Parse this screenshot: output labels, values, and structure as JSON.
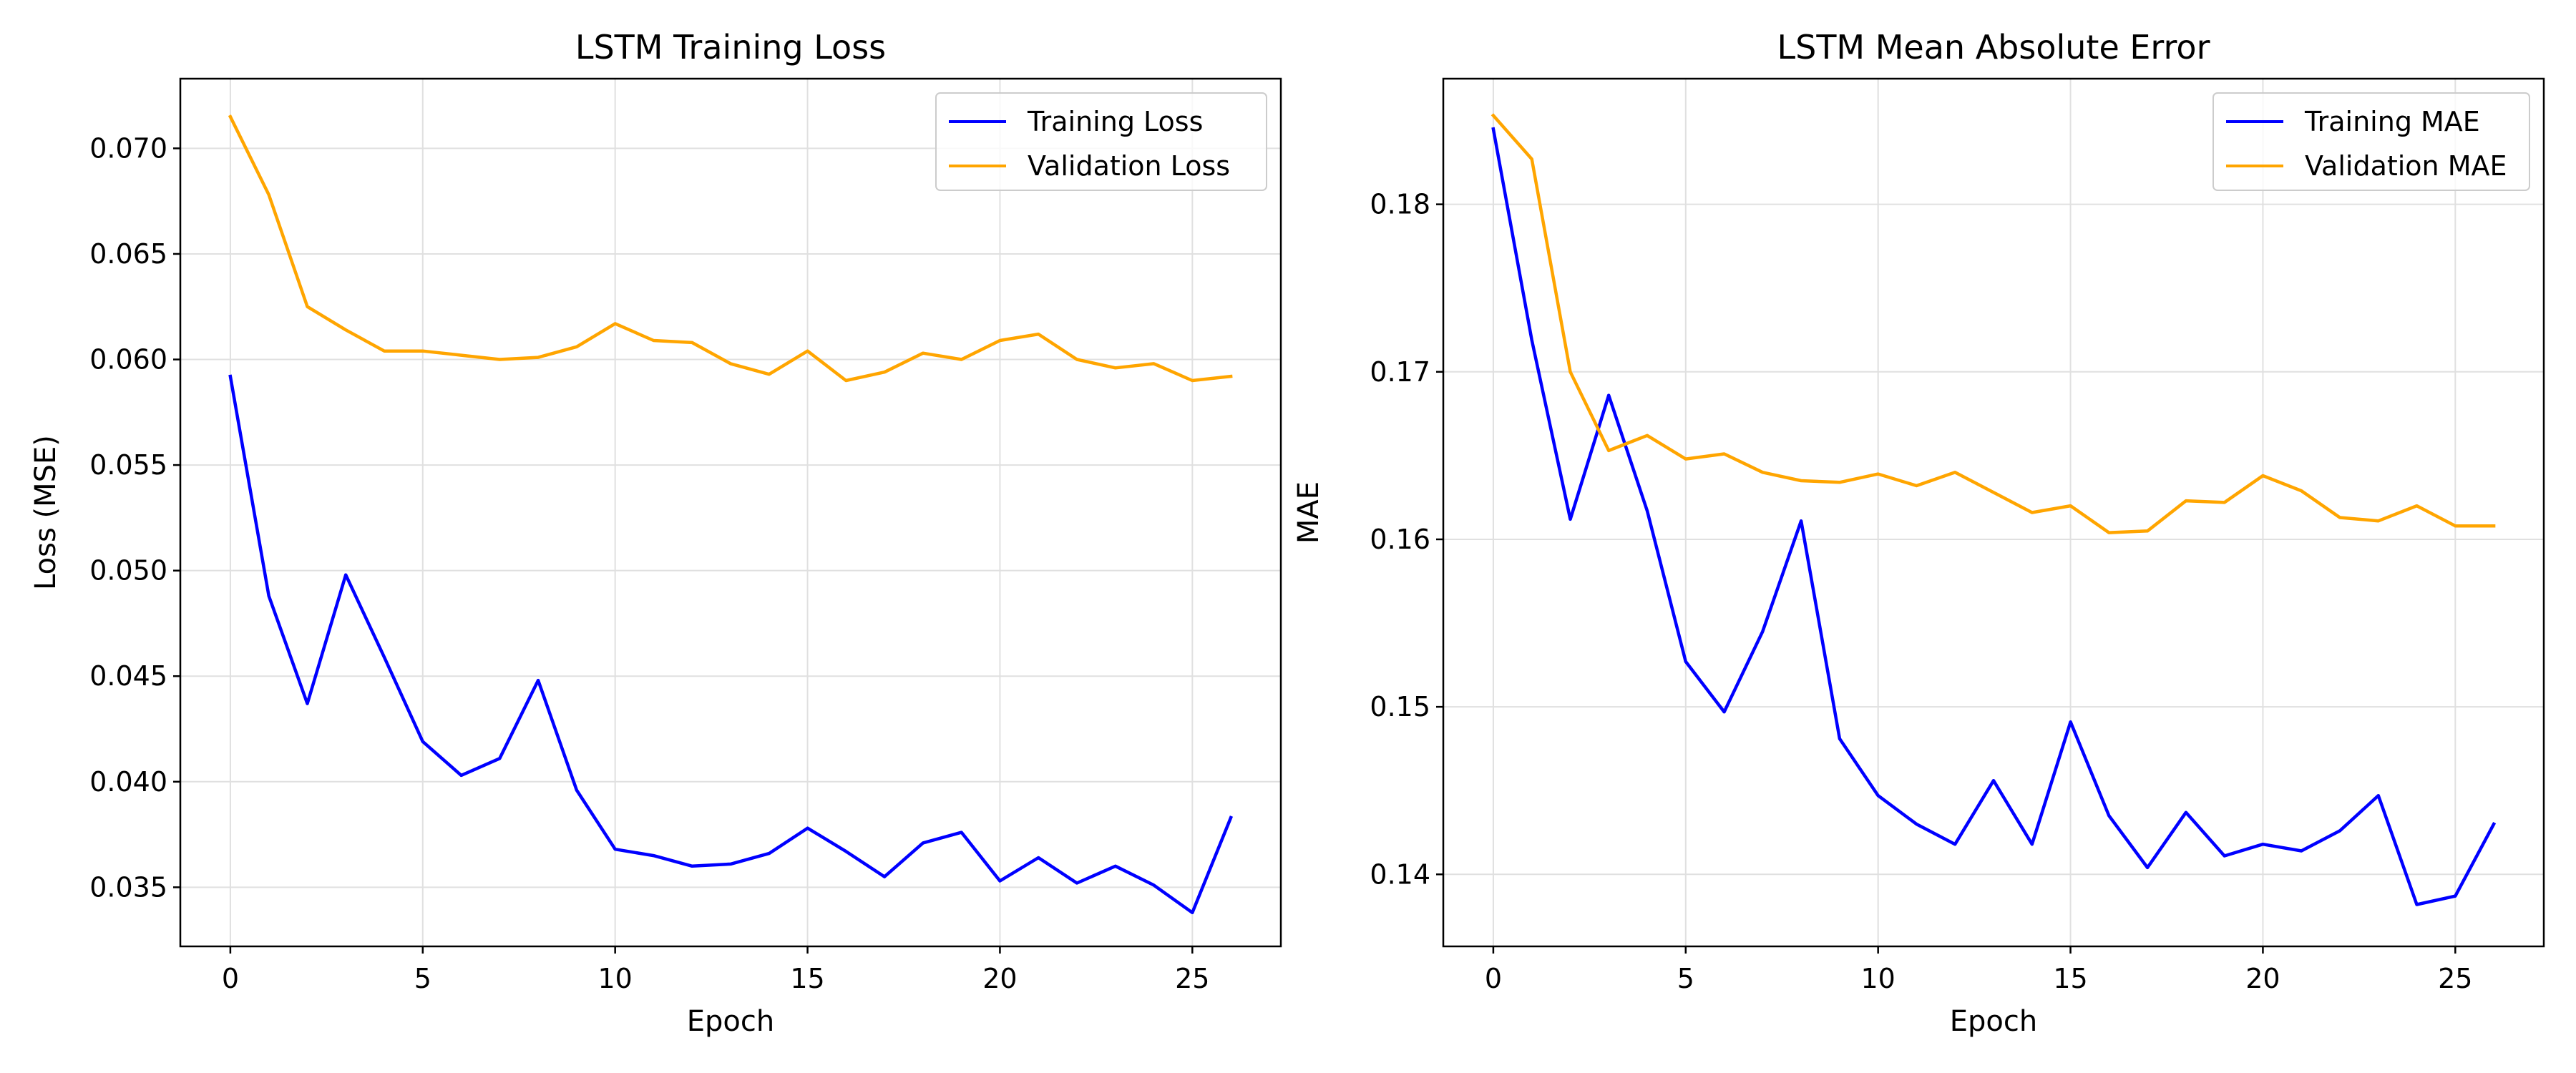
{
  "chart_data": [
    {
      "type": "line",
      "title": "LSTM Training Loss",
      "xlabel": "Epoch",
      "ylabel": "Loss (MSE)",
      "xlim": [
        -1.3,
        27.3
      ],
      "ylim": [
        0.0322,
        0.0733
      ],
      "xticks": [
        "0",
        "5",
        "10",
        "15",
        "20",
        "25"
      ],
      "yticks": [
        "0.035",
        "0.040",
        "0.045",
        "0.050",
        "0.055",
        "0.060",
        "0.065",
        "0.070"
      ],
      "grid": true,
      "legend_position": "top-right",
      "x": [
        0,
        1,
        2,
        3,
        4,
        5,
        6,
        7,
        8,
        9,
        10,
        11,
        12,
        13,
        14,
        15,
        16,
        17,
        18,
        19,
        20,
        21,
        22,
        23,
        24,
        25,
        26
      ],
      "series": [
        {
          "name": "Training Loss",
          "color": "#0000ff",
          "values": [
            0.0592,
            0.0488,
            0.0437,
            0.0498,
            0.0459,
            0.0419,
            0.0403,
            0.0411,
            0.0448,
            0.0396,
            0.0368,
            0.0365,
            0.036,
            0.0361,
            0.0366,
            0.0378,
            0.0367,
            0.0355,
            0.0371,
            0.0376,
            0.0353,
            0.0364,
            0.0352,
            0.036,
            0.0351,
            0.0338,
            0.0383
          ]
        },
        {
          "name": "Validation Loss",
          "color": "#ffa500",
          "values": [
            0.0715,
            0.0678,
            0.0625,
            0.0614,
            0.0604,
            0.0604,
            0.0602,
            0.06,
            0.0601,
            0.0606,
            0.0617,
            0.0609,
            0.0608,
            0.0598,
            0.0593,
            0.0604,
            0.059,
            0.0594,
            0.0603,
            0.06,
            0.0609,
            0.0612,
            0.06,
            0.0596,
            0.0598,
            0.059,
            0.0592
          ]
        }
      ]
    },
    {
      "type": "line",
      "title": "LSTM Mean Absolute Error",
      "xlabel": "Epoch",
      "ylabel": "MAE",
      "xlim": [
        -1.3,
        27.3
      ],
      "ylim": [
        0.1357,
        0.1875
      ],
      "xticks": [
        "0",
        "5",
        "10",
        "15",
        "20",
        "25"
      ],
      "yticks": [
        "0.14",
        "0.15",
        "0.16",
        "0.17",
        "0.18"
      ],
      "grid": true,
      "legend_position": "top-right",
      "x": [
        0,
        1,
        2,
        3,
        4,
        5,
        6,
        7,
        8,
        9,
        10,
        11,
        12,
        13,
        14,
        15,
        16,
        17,
        18,
        19,
        20,
        21,
        22,
        23,
        24,
        25,
        26
      ],
      "series": [
        {
          "name": "Training MAE",
          "color": "#0000ff",
          "values": [
            0.1845,
            0.1719,
            0.1612,
            0.1686,
            0.1617,
            0.1527,
            0.1497,
            0.1545,
            0.1611,
            0.1481,
            0.1447,
            0.143,
            0.1418,
            0.1456,
            0.1418,
            0.1491,
            0.1435,
            0.1404,
            0.1437,
            0.1411,
            0.1418,
            0.1414,
            0.1426,
            0.1447,
            0.1382,
            0.1387,
            0.143
          ]
        },
        {
          "name": "Validation MAE",
          "color": "#ffa500",
          "values": [
            0.1853,
            0.1827,
            0.17,
            0.1653,
            0.1662,
            0.1648,
            0.1651,
            0.164,
            0.1635,
            0.1634,
            0.1639,
            0.1632,
            0.164,
            0.1628,
            0.1616,
            0.162,
            0.1604,
            0.1605,
            0.1623,
            0.1622,
            0.1638,
            0.1629,
            0.1613,
            0.1611,
            0.162,
            0.1608,
            0.1608
          ]
        }
      ]
    }
  ]
}
